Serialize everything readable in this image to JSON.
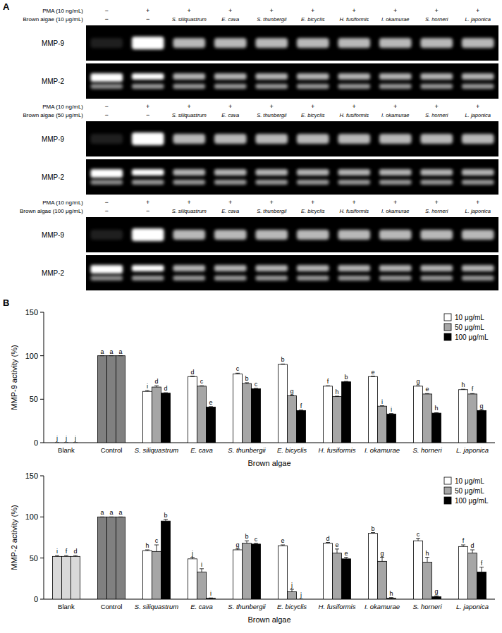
{
  "panel_a": {
    "label": "A",
    "blocks": [
      {
        "pma_label": "PMA (10 ng/mL)",
        "pma_signs": [
          "−",
          "+",
          "+",
          "+",
          "+",
          "+",
          "+",
          "+",
          "+",
          "+"
        ],
        "algae_label": "Brown algae (10 μg/mL)",
        "algae_lanes": [
          "−",
          "−",
          "S. siliquastrum",
          "E. cava",
          "S. thunbergii",
          "E. bicyclis",
          "H. fusiformis",
          "I. okamurae",
          "S. horneri",
          "L. japonica"
        ],
        "gels": [
          "MMP-9",
          "MMP-2"
        ]
      },
      {
        "pma_label": "PMA (10 ng/mL)",
        "pma_signs": [
          "−",
          "+",
          "+",
          "+",
          "+",
          "+",
          "+",
          "+",
          "+",
          "+"
        ],
        "algae_label": "Brown algae (50 μg/mL)",
        "algae_lanes": [
          "−",
          "−",
          "S. siliquastrum",
          "E. cava",
          "S. thunbergii",
          "E. bicyclis",
          "H. fusiformis",
          "I. okamurae",
          "S. horneri",
          "L. japonica"
        ],
        "gels": [
          "MMP-9",
          "MMP-2"
        ]
      },
      {
        "pma_label": "PMA (10 ng/mL)",
        "pma_signs": [
          "−",
          "+",
          "+",
          "+",
          "+",
          "+",
          "+",
          "+",
          "+",
          "+"
        ],
        "algae_label": "Brown algae (100 μg/mL)",
        "algae_lanes": [
          "−",
          "−",
          "S. siliquastrum",
          "E. cava",
          "S. thunbergii",
          "E. bicyclis",
          "H. fusiformis",
          "I. okamurae",
          "S. horneri",
          "L. japonica"
        ],
        "gels": [
          "MMP-9",
          "MMP-2"
        ]
      }
    ]
  },
  "panel_b": {
    "label": "B"
  },
  "chart_data": [
    {
      "type": "bar",
      "ylabel": "MMP-9 activity (%)",
      "xlabel": "Brown algae",
      "categories": [
        "Blank",
        "Control",
        "S. siliquastrum",
        "E. cava",
        "S. thunbergii",
        "E. bicyclis",
        "H. fusiformis",
        "I. okamurae",
        "S. horneri",
        "L. japonica"
      ],
      "ylim": [
        0,
        150
      ],
      "yticks": [
        0,
        50,
        100,
        150
      ],
      "legend": "upper right",
      "series": [
        {
          "name": "10 μg/mL",
          "color": "#ffffff",
          "colors": [
            "#d9d9d9",
            "#808080",
            "#ffffff",
            "#ffffff",
            "#ffffff",
            "#ffffff",
            "#ffffff",
            "#ffffff",
            "#ffffff",
            "#ffffff"
          ],
          "values": [
            0,
            100,
            59,
            76,
            79,
            90,
            65,
            76,
            65,
            61
          ],
          "errors": [
            0,
            0,
            1,
            0.5,
            1,
            0.5,
            0.5,
            0.5,
            0.5,
            0.5
          ],
          "letters": [
            "j",
            "a",
            "i",
            "d",
            "c",
            "b",
            "f",
            "e",
            "g",
            "h"
          ]
        },
        {
          "name": "50 μg/mL",
          "color": "#a6a6a6",
          "colors": [
            "#d9d9d9",
            "#808080",
            "#a6a6a6",
            "#a6a6a6",
            "#a6a6a6",
            "#a6a6a6",
            "#a6a6a6",
            "#a6a6a6",
            "#a6a6a6",
            "#a6a6a6"
          ],
          "values": [
            0,
            100,
            64,
            65,
            68,
            54,
            53,
            42,
            56,
            56
          ],
          "errors": [
            0,
            0,
            1.5,
            0.5,
            1,
            0.5,
            0.5,
            0.5,
            0.5,
            0.5
          ],
          "letters": [
            "j",
            "a",
            "d",
            "c",
            "b",
            "g",
            "h",
            "i",
            "e",
            "f"
          ]
        },
        {
          "name": "100 μg/mL",
          "color": "#000000",
          "colors": [
            "#d9d9d9",
            "#808080",
            "#000000",
            "#000000",
            "#000000",
            "#000000",
            "#000000",
            "#000000",
            "#000000",
            "#000000"
          ],
          "values": [
            0,
            100,
            57,
            41,
            62,
            37,
            70,
            33,
            34,
            37
          ],
          "errors": [
            0,
            0,
            0.5,
            0.5,
            0.5,
            0.5,
            0.5,
            0.5,
            0.5,
            0.5
          ],
          "letters": [
            "j",
            "a",
            "d",
            "e",
            "c",
            "f",
            "b",
            "i",
            "h",
            "g"
          ]
        }
      ]
    },
    {
      "type": "bar",
      "ylabel": "MMP-2 activity (%)",
      "xlabel": "Brown algae",
      "categories": [
        "Blank",
        "Control",
        "S. siliquastrum",
        "E. cava",
        "S. thunbergii",
        "E. bicyclis",
        "H. fusiformis",
        "I. okamurae",
        "S. horneri",
        "L. japonica"
      ],
      "ylim": [
        0,
        150
      ],
      "yticks": [
        0,
        50,
        100,
        150
      ],
      "legend": "upper right",
      "series": [
        {
          "name": "10 μg/mL",
          "color": "#ffffff",
          "colors": [
            "#d9d9d9",
            "#808080",
            "#ffffff",
            "#ffffff",
            "#ffffff",
            "#ffffff",
            "#ffffff",
            "#ffffff",
            "#ffffff",
            "#ffffff"
          ],
          "values": [
            52,
            100,
            59,
            49,
            60,
            65,
            68,
            80,
            71,
            64
          ],
          "errors": [
            1,
            0,
            1,
            2,
            1,
            1,
            1,
            1,
            3,
            2
          ],
          "letters": [
            "i",
            "a",
            "h",
            "j",
            "g",
            "e",
            "d",
            "b",
            "c",
            "f"
          ]
        },
        {
          "name": "50 μg/mL",
          "color": "#a6a6a6",
          "colors": [
            "#d9d9d9",
            "#808080",
            "#a6a6a6",
            "#a6a6a6",
            "#a6a6a6",
            "#a6a6a6",
            "#a6a6a6",
            "#a6a6a6",
            "#a6a6a6",
            "#a6a6a6"
          ],
          "values": [
            52,
            100,
            58,
            33,
            68,
            9,
            56,
            46,
            45,
            56
          ],
          "errors": [
            1,
            0,
            8,
            4,
            3,
            3,
            5,
            5,
            6,
            4
          ],
          "letters": [
            "f",
            "a",
            "c",
            "i",
            "b",
            "j",
            "e",
            "g",
            "h",
            "d"
          ]
        },
        {
          "name": "100 μg/mL",
          "color": "#000000",
          "colors": [
            "#d9d9d9",
            "#808080",
            "#000000",
            "#000000",
            "#000000",
            "#000000",
            "#000000",
            "#000000",
            "#000000",
            "#000000"
          ],
          "values": [
            52,
            100,
            95,
            1,
            67,
            0,
            49,
            1,
            3,
            33
          ],
          "errors": [
            1,
            0,
            2,
            0.5,
            1,
            0,
            2,
            1,
            1,
            6
          ],
          "letters": [
            "d",
            "a",
            "b",
            "i",
            "c",
            "j",
            "e",
            "h",
            "g",
            "f"
          ]
        }
      ]
    }
  ]
}
